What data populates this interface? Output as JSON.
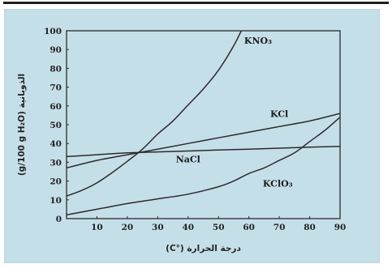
{
  "chart_data": {
    "type": "line",
    "xlabel": "درجة الحرارة (°C)",
    "ylabel": "الذوبانية (g/100 g H₂O)",
    "xlim": [
      0,
      90
    ],
    "ylim": [
      0,
      100
    ],
    "xticks": [
      10,
      20,
      30,
      40,
      50,
      60,
      70,
      80,
      90
    ],
    "yticks": [
      0,
      10,
      20,
      30,
      40,
      50,
      60,
      70,
      80,
      90,
      100
    ],
    "grid": false,
    "legend": "labels-on-lines",
    "series": [
      {
        "name": "KNO₃",
        "x": [
          0,
          5,
          10,
          15,
          20,
          25,
          30,
          35,
          40,
          45,
          50,
          55,
          57.5
        ],
        "y": [
          12,
          15,
          19,
          24.5,
          30.5,
          37,
          45,
          52,
          60.5,
          69,
          79,
          92,
          100
        ],
        "label_pos": {
          "x": 63,
          "y": 93
        }
      },
      {
        "name": "KCl",
        "x": [
          0,
          10,
          20,
          30,
          40,
          50,
          60,
          70,
          80,
          90
        ],
        "y": [
          27,
          31,
          34,
          37,
          40,
          43,
          46,
          49,
          52,
          56
        ],
        "label_pos": {
          "x": 70,
          "y": 54
        }
      },
      {
        "name": "NaCl",
        "x": [
          0,
          10,
          20,
          30,
          40,
          50,
          60,
          70,
          80,
          90
        ],
        "y": [
          33,
          34,
          35,
          35.5,
          36,
          36.5,
          37,
          37.5,
          38,
          38.5
        ],
        "label_pos": {
          "x": 40,
          "y": 30
        }
      },
      {
        "name": "KClO₃",
        "x": [
          0,
          10,
          20,
          30,
          40,
          50,
          55,
          60,
          65,
          70,
          75,
          80,
          85,
          90
        ],
        "y": [
          2,
          5,
          8,
          10.5,
          13,
          17,
          20,
          24,
          27,
          31,
          35,
          41,
          47,
          54
        ],
        "label_pos": {
          "x": 69.5,
          "y": 17
        }
      }
    ]
  }
}
